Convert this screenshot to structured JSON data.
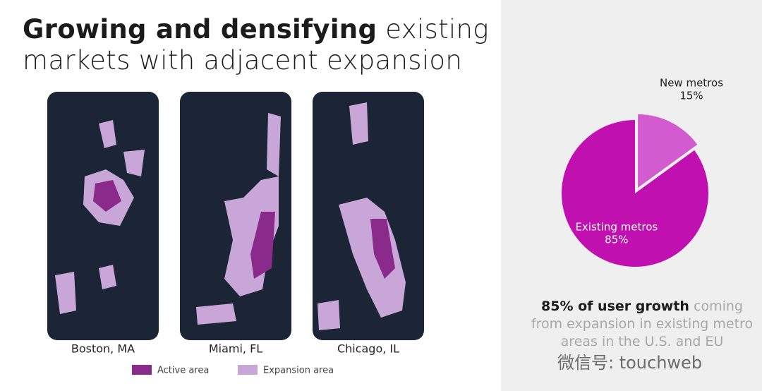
{
  "title": {
    "bold": "Growing and densifying",
    "lines": [
      "existing",
      "markets with adjacent expansion"
    ]
  },
  "maps": [
    {
      "label": "Boston, MA"
    },
    {
      "label": "Miami, FL"
    },
    {
      "label": "Chicago, IL"
    }
  ],
  "legend": [
    {
      "name": "Active area",
      "color": "#8a2a8a"
    },
    {
      "name": "Expansion area",
      "color": "#c9a6d8"
    }
  ],
  "chart_data": {
    "type": "pie",
    "categories": [
      "New metros",
      "Existing metros"
    ],
    "values": [
      15,
      85
    ],
    "value_labels": [
      "15%",
      "85%"
    ],
    "colors": [
      "#d25ccf",
      "#c010b0"
    ]
  },
  "callout": {
    "bold": "85% of user growth",
    "rest": "coming from expansion in existing metro areas in the U.S. and EU"
  },
  "watermark": "微信号: touchweb"
}
